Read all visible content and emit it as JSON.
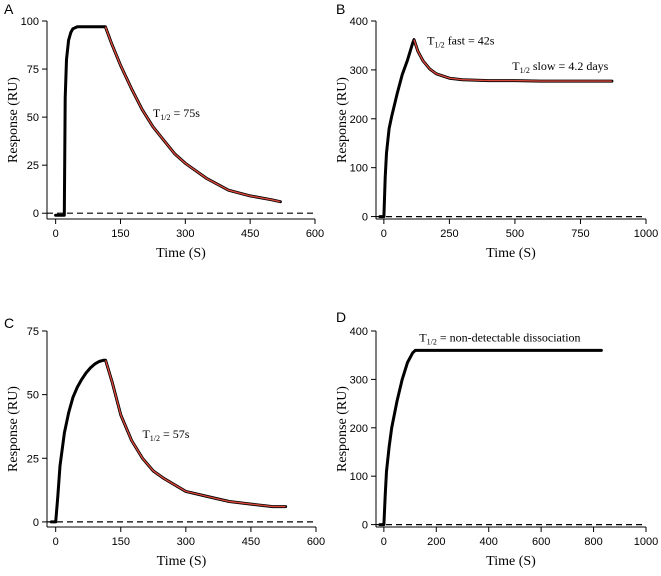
{
  "chart_data": [
    {
      "type": "line",
      "panel": "A",
      "xlabel": "Time (S)",
      "ylabel": "Response (RU)",
      "xlim": [
        -20,
        600
      ],
      "ylim": [
        -3,
        100
      ],
      "xticks": [
        0,
        150,
        300,
        450,
        600
      ],
      "yticks": [
        0,
        25,
        50,
        75,
        100
      ],
      "annotations": [
        {
          "base": "T",
          "sub": "1/2",
          "text": " = 75s",
          "x": 225,
          "y": 50
        }
      ],
      "series": [
        {
          "name": "response",
          "x": [
            0,
            15,
            20,
            22,
            25,
            30,
            35,
            40,
            50,
            60,
            70,
            80,
            100,
            115,
            130,
            150,
            175,
            200,
            225,
            250,
            275,
            300,
            350,
            400,
            450,
            500,
            520
          ],
          "y": [
            -1,
            -1,
            -1,
            60,
            80,
            90,
            94,
            96,
            97,
            97,
            97,
            97,
            97,
            97,
            88,
            77,
            65,
            54,
            45,
            38,
            31,
            26,
            18,
            12,
            9,
            7,
            6
          ]
        },
        {
          "name": "fit",
          "x": [
            115,
            130,
            150,
            175,
            200,
            225,
            250,
            275,
            300,
            350,
            400,
            450,
            500,
            520
          ],
          "y": [
            97,
            88,
            77,
            65,
            54,
            45,
            38,
            31,
            26,
            18,
            12,
            9,
            7,
            6
          ]
        },
        {
          "name": "baseline",
          "x": [
            -20,
            600
          ],
          "y": [
            0,
            0
          ]
        }
      ]
    },
    {
      "type": "line",
      "panel": "B",
      "xlabel": "Time (S)",
      "ylabel": "Response (RU)",
      "xlim": [
        -30,
        1000
      ],
      "ylim": [
        -5,
        400
      ],
      "xticks": [
        0,
        250,
        500,
        750,
        1000
      ],
      "yticks": [
        0,
        100,
        200,
        300,
        400
      ],
      "annotations": [
        {
          "base": "T",
          "sub": "1/2",
          "text": " fast  = 42s",
          "x": 165,
          "y": 352
        },
        {
          "base": "T",
          "sub": "1/2",
          "text": " slow = 4.2 days",
          "x": 490,
          "y": 300
        }
      ],
      "series": [
        {
          "name": "response",
          "x": [
            -15,
            0,
            5,
            10,
            20,
            30,
            50,
            70,
            90,
            110,
            115,
            130,
            150,
            175,
            200,
            250,
            300,
            400,
            500,
            600,
            700,
            800,
            870
          ],
          "y": [
            0,
            0,
            80,
            130,
            180,
            205,
            250,
            290,
            320,
            355,
            362,
            338,
            318,
            302,
            292,
            283,
            280,
            278,
            278,
            277,
            277,
            277,
            277
          ]
        },
        {
          "name": "fit",
          "x": [
            115,
            130,
            150,
            175,
            200,
            250,
            300,
            400,
            500,
            600,
            700,
            800,
            870
          ],
          "y": [
            362,
            338,
            318,
            302,
            292,
            283,
            280,
            278,
            278,
            277,
            277,
            277,
            277
          ]
        },
        {
          "name": "baseline",
          "x": [
            -30,
            1000
          ],
          "y": [
            0,
            0
          ]
        }
      ]
    },
    {
      "type": "line",
      "panel": "C",
      "xlabel": "Time (S)",
      "ylabel": "Response (RU)",
      "xlim": [
        -20,
        600
      ],
      "ylim": [
        -2,
        75
      ],
      "xticks": [
        0,
        150,
        300,
        450,
        600
      ],
      "yticks": [
        0,
        25,
        50,
        75
      ],
      "annotations": [
        {
          "base": "T",
          "sub": "1/2",
          "text": " = 57s",
          "x": 200,
          "y": 33
        }
      ],
      "series": [
        {
          "name": "response",
          "x": [
            -10,
            0,
            5,
            10,
            20,
            30,
            40,
            50,
            60,
            70,
            80,
            90,
            100,
            110,
            115,
            130,
            150,
            175,
            200,
            225,
            250,
            300,
            350,
            400,
            450,
            500,
            530
          ],
          "y": [
            0,
            0,
            10,
            22,
            35,
            43,
            49,
            53,
            56,
            58.5,
            60.5,
            62,
            63,
            63.5,
            63.5,
            55,
            42,
            32,
            25,
            20,
            17,
            12,
            10,
            8,
            7,
            6,
            6
          ]
        },
        {
          "name": "fit",
          "x": [
            115,
            130,
            150,
            175,
            200,
            225,
            250,
            300,
            350,
            400,
            450,
            500,
            530
          ],
          "y": [
            63.5,
            55,
            42,
            32,
            25,
            20,
            17,
            12,
            10,
            8,
            7,
            6,
            6
          ]
        },
        {
          "name": "baseline",
          "x": [
            -20,
            600
          ],
          "y": [
            0,
            0
          ]
        }
      ]
    },
    {
      "type": "line",
      "panel": "D",
      "xlabel": "Time (S)",
      "ylabel": "Response (RU)",
      "xlim": [
        -30,
        1000
      ],
      "ylim": [
        -5,
        400
      ],
      "xticks": [
        0,
        200,
        400,
        600,
        800,
        1000
      ],
      "yticks": [
        0,
        100,
        200,
        300,
        400
      ],
      "annotations": [
        {
          "base": "T",
          "sub": "1/2",
          "text": " = non-detectable dissociation",
          "x": 135,
          "y": 378
        }
      ],
      "series": [
        {
          "name": "response",
          "x": [
            -15,
            0,
            5,
            10,
            20,
            30,
            50,
            70,
            90,
            110,
            120,
            150,
            200,
            300,
            400,
            500,
            600,
            700,
            800,
            830
          ],
          "y": [
            0,
            0,
            60,
            110,
            160,
            200,
            255,
            300,
            335,
            355,
            360,
            360,
            360,
            360,
            360,
            360,
            360,
            360,
            360,
            360
          ]
        },
        {
          "name": "baseline",
          "x": [
            -30,
            1000
          ],
          "y": [
            0,
            0
          ]
        }
      ]
    }
  ]
}
